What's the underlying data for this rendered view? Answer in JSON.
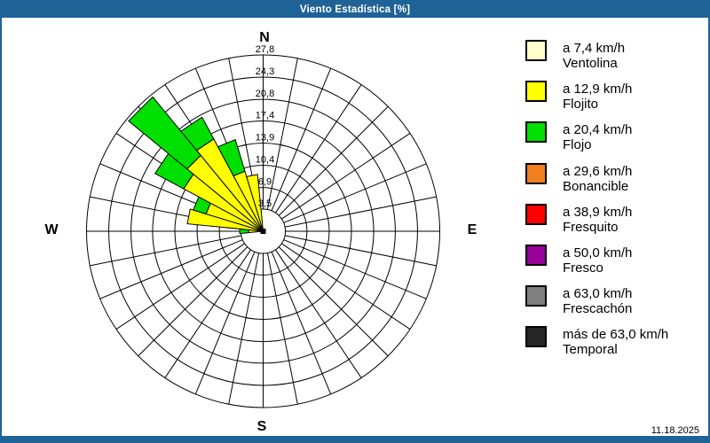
{
  "window": {
    "title": "Viento Estadística [%]",
    "date": "11.18.2025"
  },
  "colors": {
    "chrome": "#1F6396",
    "grid": "#000000",
    "background": "#FFFFFF"
  },
  "compass": {
    "n": "N",
    "e": "E",
    "s": "S",
    "w": "W"
  },
  "speed_bins": [
    {
      "key": "ventolina",
      "speed_label": "a 7,4 km/h",
      "name_label": "Ventolina",
      "color": "#FFFFCC"
    },
    {
      "key": "flojito",
      "speed_label": "a 12,9 km/h",
      "name_label": "Flojito",
      "color": "#FFFF00"
    },
    {
      "key": "flojo",
      "speed_label": "a 20,4 km/h",
      "name_label": "Flojo",
      "color": "#00E000"
    },
    {
      "key": "bonancible",
      "speed_label": "a 29,6 km/h",
      "name_label": "Bonancible",
      "color": "#EF7F1F"
    },
    {
      "key": "fresquito",
      "speed_label": "a 38,9 km/h",
      "name_label": "Fresquito",
      "color": "#FF0000"
    },
    {
      "key": "fresco",
      "speed_label": "a 50,0 km/h",
      "name_label": "Fresco",
      "color": "#990099"
    },
    {
      "key": "frescachon",
      "speed_label": "a 63,0 km/h",
      "name_label": "Frescachón",
      "color": "#808080"
    },
    {
      "key": "temporal",
      "speed_label": "más de 63,0 km/h",
      "name_label": "Temporal",
      "color": "#262626"
    }
  ],
  "chart_data": {
    "type": "windrose",
    "units": "%",
    "sector_count": 32,
    "sector_width_deg": 11.25,
    "max_value": 27.8,
    "inner_hole_value": 3.5,
    "rings": [
      {
        "value": 3.5,
        "label": "3,5"
      },
      {
        "value": 6.9,
        "label": "6,9"
      },
      {
        "value": 10.4,
        "label": "10,4"
      },
      {
        "value": 13.9,
        "label": "13,9"
      },
      {
        "value": 17.4,
        "label": "17,4"
      },
      {
        "value": 20.8,
        "label": "20,8"
      },
      {
        "value": 24.3,
        "label": "24,3"
      },
      {
        "value": 27.8,
        "label": "27,8"
      }
    ],
    "petals": [
      {
        "bearing_deg": 270.0,
        "segments": [
          {
            "bin": "flojito",
            "value": 2.3
          },
          {
            "bin": "flojo",
            "value": 1.4
          }
        ]
      },
      {
        "bearing_deg": 281.25,
        "segments": [
          {
            "bin": "flojito",
            "value": 12.0
          }
        ]
      },
      {
        "bearing_deg": 292.5,
        "segments": [
          {
            "bin": "flojito",
            "value": 9.4
          },
          {
            "bin": "flojo",
            "value": 2.1
          }
        ]
      },
      {
        "bearing_deg": 303.75,
        "segments": [
          {
            "bin": "flojito",
            "value": 14.2
          },
          {
            "bin": "flojo",
            "value": 5.1
          }
        ]
      },
      {
        "bearing_deg": 315.0,
        "segments": [
          {
            "bin": "flojito",
            "value": 15.5
          },
          {
            "bin": "flojo",
            "value": 11.9
          }
        ]
      },
      {
        "bearing_deg": 326.25,
        "segments": [
          {
            "bin": "flojito",
            "value": 16.5
          },
          {
            "bin": "flojo",
            "value": 3.9
          }
        ]
      },
      {
        "bearing_deg": 337.5,
        "segments": [
          {
            "bin": "flojito",
            "value": 9.9
          },
          {
            "bin": "flojo",
            "value": 5.2
          }
        ]
      },
      {
        "bearing_deg": 348.75,
        "segments": [
          {
            "bin": "flojito",
            "value": 9.0
          }
        ]
      }
    ]
  }
}
